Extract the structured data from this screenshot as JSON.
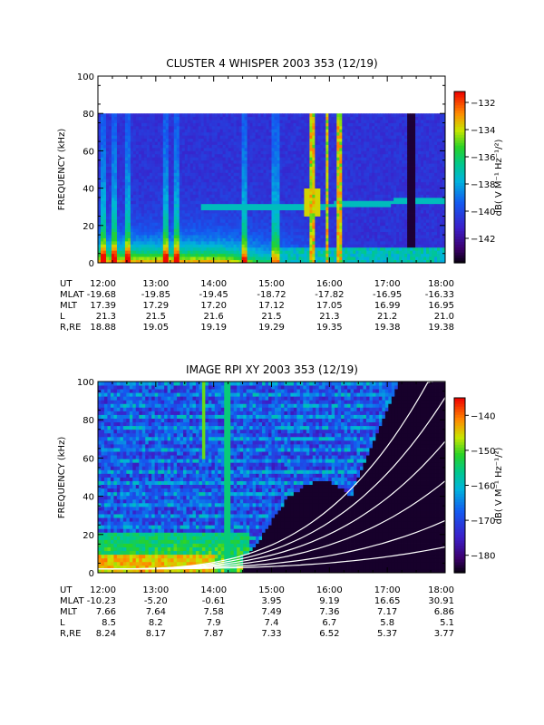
{
  "chart_data": [
    {
      "type": "heatmap",
      "title": "CLUSTER 4 WHISPER 2003 353 (12/19)",
      "ylabel": "FREQUENCY (kHz)",
      "ylim": [
        0,
        100
      ],
      "y_ticks": [
        "0",
        "20",
        "40",
        "60",
        "80",
        "100"
      ],
      "x_ticks": [
        "12:00",
        "13:00",
        "14:00",
        "15:00",
        "16:00",
        "17:00",
        "18:00"
      ],
      "colorbar": {
        "label": "dB( V M⁻¹ Hz⁻¹/²)",
        "range": [
          -143.8,
          -131.2
        ],
        "ticks": [
          "-132",
          "-134",
          "-136",
          "-138",
          "-140",
          "-142"
        ]
      },
      "ephemeris": [
        {
          "label": "UT",
          "values": [
            "12:00",
            "13:00",
            "14:00",
            "15:00",
            "16:00",
            "17:00",
            "18:00"
          ]
        },
        {
          "label": "MLAT",
          "values": [
            "-19.68",
            "-19.85",
            "-19.45",
            "-18.72",
            "-17.82",
            "-16.95",
            "-16.33"
          ]
        },
        {
          "label": "MLT",
          "values": [
            "17.39",
            "17.29",
            "17.20",
            "17.12",
            "17.05",
            "16.99",
            "16.95"
          ]
        },
        {
          "label": "L",
          "values": [
            "21.3",
            "21.5",
            "21.6",
            "21.5",
            "21.3",
            "21.2",
            "21.0"
          ]
        },
        {
          "label": "R,RE",
          "values": [
            "18.88",
            "19.05",
            "19.19",
            "19.29",
            "19.35",
            "19.38",
            "19.38"
          ]
        }
      ]
    },
    {
      "type": "heatmap",
      "title": "IMAGE RPI XY 2003 353 (12/19)",
      "ylabel": "FREQUENCY (kHz)",
      "ylim": [
        0,
        100
      ],
      "y_ticks": [
        "0",
        "20",
        "40",
        "60",
        "80",
        "100"
      ],
      "x_ticks": [
        "12:00",
        "13:00",
        "14:00",
        "15:00",
        "16:00",
        "17:00",
        "18:00"
      ],
      "colorbar": {
        "label": "dB( V M⁻¹ Hz⁻¹/²)",
        "range": [
          -185,
          -135
        ],
        "ticks": [
          "-140",
          "-150",
          "-160",
          "-170",
          "-180"
        ]
      },
      "ephemeris": [
        {
          "label": "UT",
          "values": [
            "12:00",
            "13:00",
            "14:00",
            "15:00",
            "16:00",
            "17:00",
            "18:00"
          ]
        },
        {
          "label": "MLAT",
          "values": [
            "-10.23",
            "-5.20",
            "-0.61",
            "3.95",
            "9.19",
            "16.65",
            "30.91"
          ]
        },
        {
          "label": "MLT",
          "values": [
            "7.66",
            "7.64",
            "7.58",
            "7.49",
            "7.36",
            "7.17",
            "6.86"
          ]
        },
        {
          "label": "L",
          "values": [
            "8.5",
            "8.2",
            "7.9",
            "7.4",
            "6.7",
            "5.8",
            "5.1"
          ]
        },
        {
          "label": "R,RE",
          "values": [
            "8.24",
            "8.17",
            "7.87",
            "7.33",
            "6.52",
            "5.37",
            "3.77"
          ]
        }
      ]
    }
  ]
}
